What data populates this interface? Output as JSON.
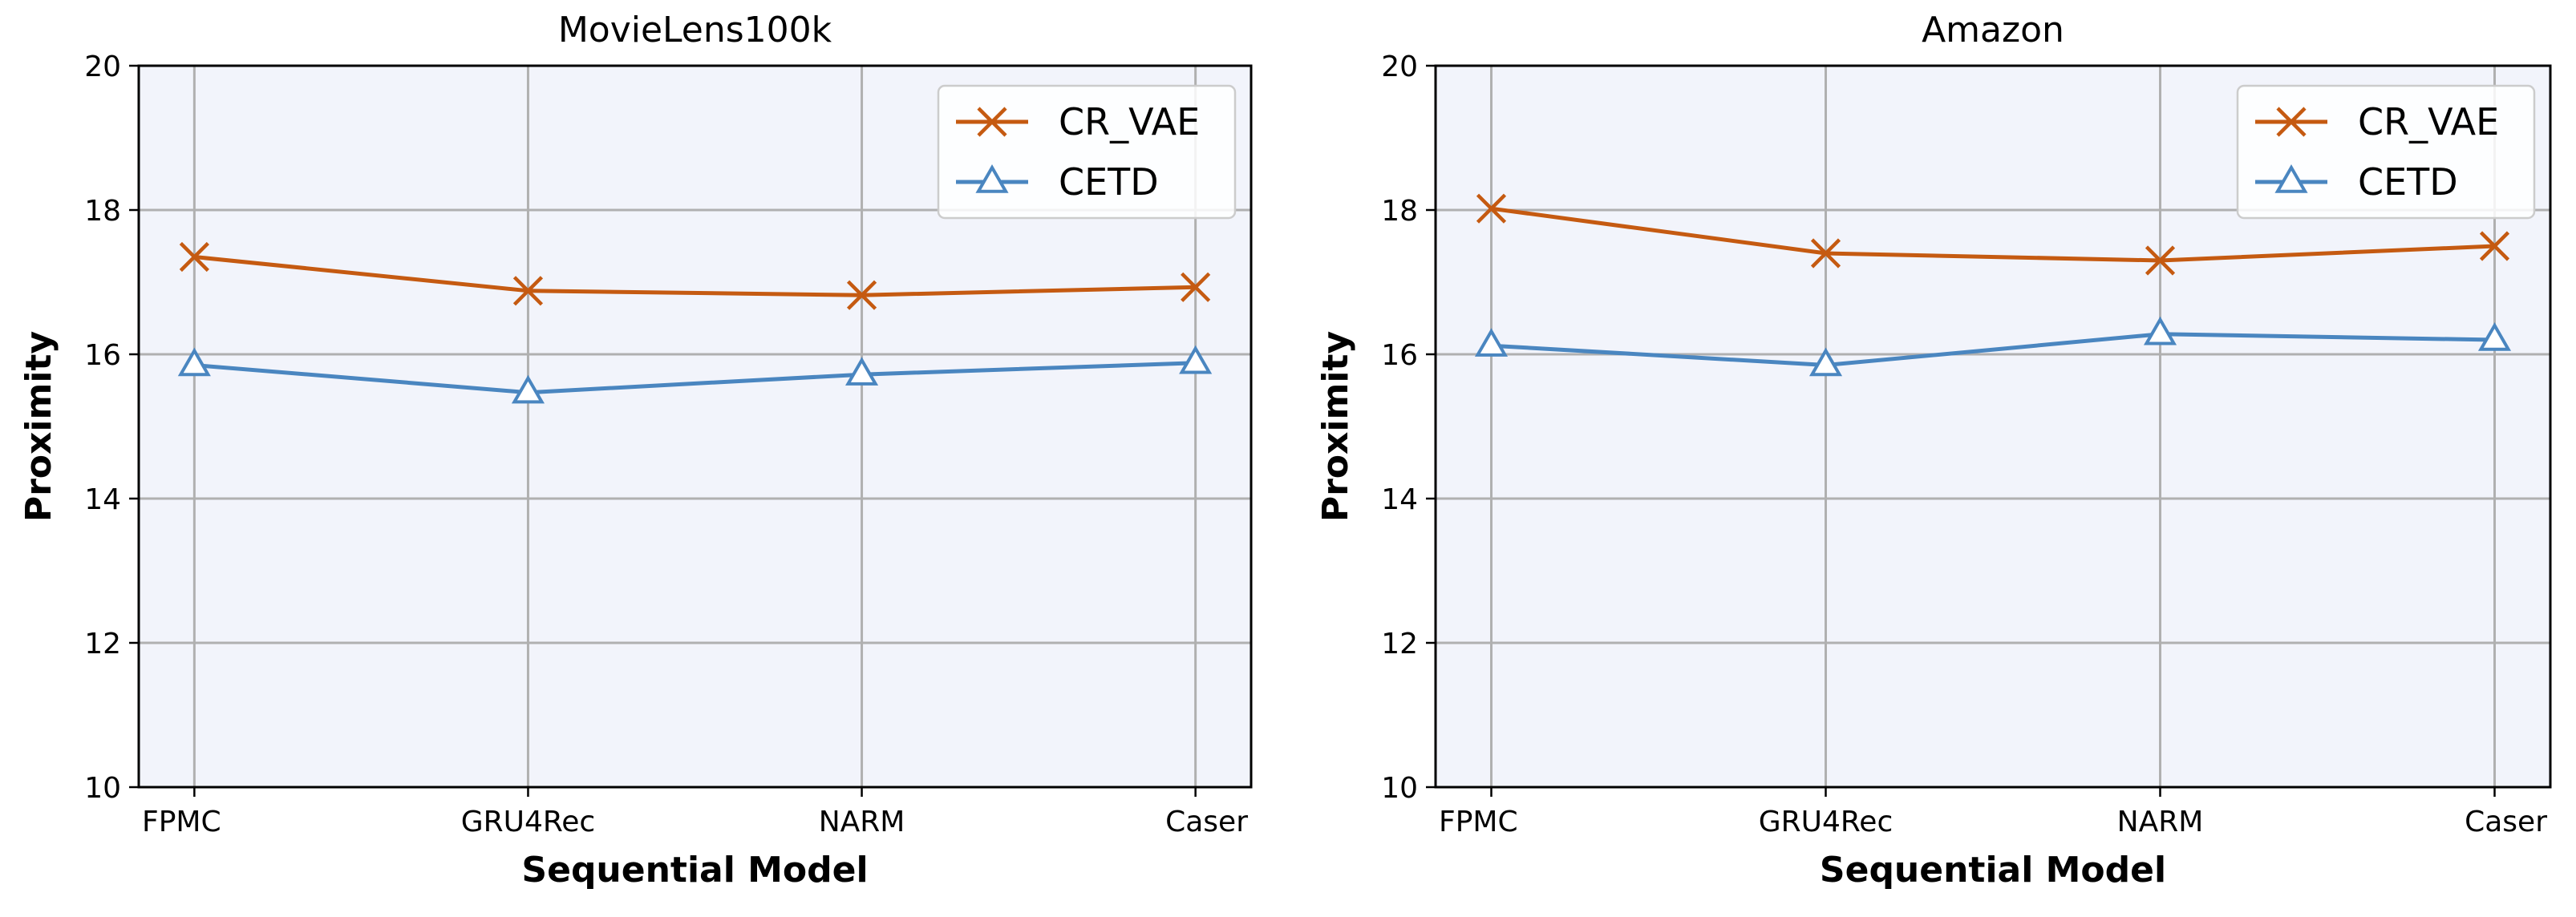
{
  "chart_data": [
    {
      "type": "line",
      "title": "MovieLens100k",
      "xlabel": "Sequential Model",
      "ylabel": "Proximity",
      "categories": [
        "FPMC",
        "GRU4Rec",
        "NARM",
        "Caser"
      ],
      "ylim": [
        10,
        20
      ],
      "yticks": [
        "10",
        "12",
        "14",
        "16",
        "18",
        "20"
      ],
      "grid": true,
      "legend_position": "top-right",
      "series": [
        {
          "name": "CR_VAE",
          "marker": "x",
          "color": "#c55a11",
          "values": [
            17.35,
            16.88,
            16.82,
            16.93
          ]
        },
        {
          "name": "CETD",
          "marker": "triangle",
          "color": "#4a86c0",
          "values": [
            15.85,
            15.47,
            15.72,
            15.88
          ]
        }
      ]
    },
    {
      "type": "line",
      "title": "Amazon",
      "xlabel": "Sequential Model",
      "ylabel": "Proximity",
      "categories": [
        "FPMC",
        "GRU4Rec",
        "NARM",
        "Caser"
      ],
      "ylim": [
        10,
        20
      ],
      "yticks": [
        "10",
        "12",
        "14",
        "16",
        "18",
        "20"
      ],
      "grid": true,
      "legend_position": "top-right",
      "series": [
        {
          "name": "CR_VAE",
          "marker": "x",
          "color": "#c55a11",
          "values": [
            18.02,
            17.4,
            17.3,
            17.5
          ]
        },
        {
          "name": "CETD",
          "marker": "triangle",
          "color": "#4a86c0",
          "values": [
            16.12,
            15.85,
            16.28,
            16.2
          ]
        }
      ]
    }
  ]
}
